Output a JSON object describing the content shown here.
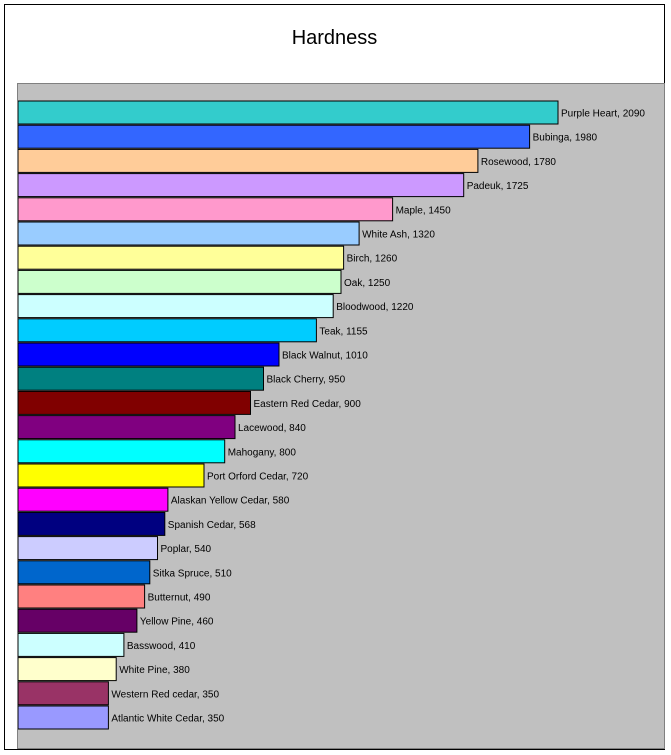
{
  "chart_data": {
    "type": "bar",
    "orientation": "horizontal",
    "title": "Hardness",
    "xlabel": "",
    "ylabel": "",
    "xlim": [
      0,
      2200
    ],
    "grid": false,
    "legend": "none",
    "bars": [
      {
        "label": "Purple Heart, 2090",
        "name": "Purple Heart",
        "value": 2090,
        "color": "#33CCCC"
      },
      {
        "label": "Bubinga, 1980",
        "name": "Bubinga",
        "value": 1980,
        "color": "#3366FF"
      },
      {
        "label": "Rosewood, 1780",
        "name": "Rosewood",
        "value": 1780,
        "color": "#FFCC99"
      },
      {
        "label": "Padeuk, 1725",
        "name": "Padeuk",
        "value": 1725,
        "color": "#CC99FF"
      },
      {
        "label": "Maple, 1450",
        "name": "Maple",
        "value": 1450,
        "color": "#FF99CC"
      },
      {
        "label": "White Ash, 1320",
        "name": "White Ash",
        "value": 1320,
        "color": "#99CCFF"
      },
      {
        "label": "Birch, 1260",
        "name": "Birch",
        "value": 1260,
        "color": "#FFFF99"
      },
      {
        "label": "Oak, 1250",
        "name": "Oak",
        "value": 1250,
        "color": "#CCFFCC"
      },
      {
        "label": "Bloodwood, 1220",
        "name": "Bloodwood",
        "value": 1220,
        "color": "#CCFFFF"
      },
      {
        "label": "Teak, 1155",
        "name": "Teak",
        "value": 1155,
        "color": "#00CCFF"
      },
      {
        "label": "Black Walnut, 1010",
        "name": "Black Walnut",
        "value": 1010,
        "color": "#0000FF"
      },
      {
        "label": "Black Cherry, 950",
        "name": "Black Cherry",
        "value": 950,
        "color": "#008080"
      },
      {
        "label": "Eastern Red Cedar, 900",
        "name": "Eastern Red Cedar",
        "value": 900,
        "color": "#800000"
      },
      {
        "label": "Lacewood, 840",
        "name": "Lacewood",
        "value": 840,
        "color": "#800080"
      },
      {
        "label": "Mahogany, 800",
        "name": "Mahogany",
        "value": 800,
        "color": "#00FFFF"
      },
      {
        "label": "Port Orford Cedar, 720",
        "name": "Port Orford Cedar",
        "value": 720,
        "color": "#FFFF00"
      },
      {
        "label": "Alaskan Yellow Cedar, 580",
        "name": "Alaskan Yellow Cedar",
        "value": 580,
        "color": "#FF00FF"
      },
      {
        "label": "Spanish Cedar, 568",
        "name": "Spanish Cedar",
        "value": 568,
        "color": "#000080"
      },
      {
        "label": "Poplar, 540",
        "name": "Poplar",
        "value": 540,
        "color": "#CCCCFF"
      },
      {
        "label": "Sitka Spruce, 510",
        "name": "Sitka Spruce",
        "value": 510,
        "color": "#0066CC"
      },
      {
        "label": "Butternut, 490",
        "name": "Butternut",
        "value": 490,
        "color": "#FF8080"
      },
      {
        "label": "Yellow Pine, 460",
        "name": "Yellow Pine",
        "value": 460,
        "color": "#660066"
      },
      {
        "label": "Basswood, 410",
        "name": "Basswood",
        "value": 410,
        "color": "#CCFFFF"
      },
      {
        "label": "White Pine, 380",
        "name": "White Pine",
        "value": 380,
        "color": "#FFFFCC"
      },
      {
        "label": "Western Red cedar, 350",
        "name": "Western Red cedar",
        "value": 350,
        "color": "#993366"
      },
      {
        "label": "Atlantic White Cedar, 350",
        "name": "Atlantic White Cedar",
        "value": 350,
        "color": "#9999FF"
      }
    ]
  }
}
